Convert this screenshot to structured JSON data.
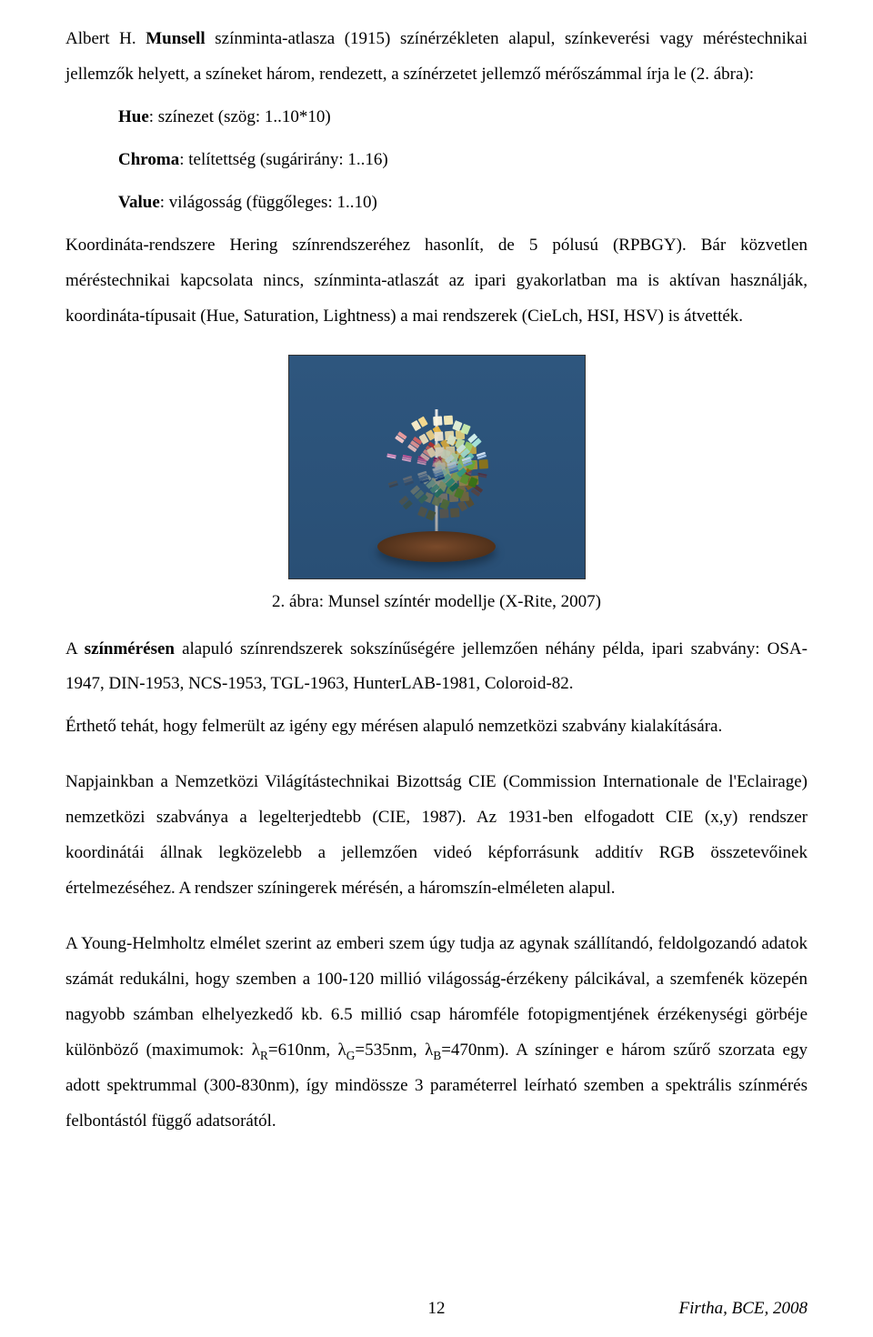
{
  "paragraphs": {
    "p1_a": "Albert H. ",
    "p1_b": "Munsell",
    "p1_c": " színminta-atlasza (1915) színérzékleten alapul, színkeverési vagy méréstechnikai jellemzők helyett, a színeket három, rendezett, a színérzetet jellemző mérőszámmal írja le (2. ábra):",
    "hue_a": "Hue",
    "hue_b": ": színezet (szög: 1..10*10)",
    "chroma_a": "Chroma",
    "chroma_b": ": telítettség (sugárirány: 1..16)",
    "value_a": "Value",
    "value_b": ": világosság (függőleges: 1..10)",
    "p2": "Koordináta-rendszere Hering színrendszeréhez hasonlít, de 5 pólusú (RPBGY). Bár közvetlen méréstechnikai kapcsolata nincs, színminta-atlaszát az ipari gyakorlatban ma is aktívan használják, koordináta-típusait (Hue, Saturation, Lightness) a mai rendszerek (CieLch, HSI, HSV) is átvették.",
    "caption": "2. ábra: Munsel színtér modellje (X-Rite, 2007)",
    "p3_a": "A ",
    "p3_b": "színmérésen",
    "p3_c": " alapuló színrendszerek sokszínűségére jellemzően néhány példa, ipari szabvány: OSA-1947, DIN-1953, NCS-1953, TGL-1963, HunterLAB-1981, Coloroid-82.",
    "p4": "Érthető tehát, hogy felmerült az igény egy mérésen alapuló nemzetközi szabvány kialakítására.",
    "p5": "Napjainkban a Nemzetközi Világítástechnikai Bizottság CIE (Commission Internationale de l'Eclairage) nemzetközi szabványa a legelterjedtebb (CIE, 1987). Az 1931-ben elfogadott CIE (x,y) rendszer koordinátái állnak legközelebb a jellemzően videó képforrásunk additív RGB összetevőinek értelmezéséhez. A rendszer színingerek mérésén, a háromszín-elméleten alapul.",
    "p6_a": "A Young-Helmholtz elmélet szerint az emberi szem úgy tudja az agynak szállítandó, feldolgozandó adatok számát redukálni, hogy szemben a 100-120 millió világosság-érzékeny pálcikával, a szemfenék közepén nagyobb számban elhelyezkedő kb. 6.5 millió csap háromféle fotopigmentjének érzékenységi görbéje különböző (maximumok: λ",
    "p6_R": "R",
    "p6_b": "=610nm, λ",
    "p6_G": "G",
    "p6_c": "=535nm, λ",
    "p6_B": "B",
    "p6_d": "=470nm). A színinger e három szűrő szorzata egy adott spektrummal (300-830nm), így mindössze 3 paraméterrel leírható szemben a spektrális színmérés felbontástól függő adatsorától."
  },
  "figure": {
    "name": "munsell-color-tree",
    "background_color": "#2e567e",
    "stand_color": "#5d3a20",
    "leaves": [
      {
        "angle": -78,
        "sx": 0.18,
        "hues": [
          "#efb3d9",
          "#e88fc3",
          "#df5ea7",
          "#c9328a",
          "#a91a6e"
        ]
      },
      {
        "angle": -55,
        "sx": 0.42,
        "hues": [
          "#f6c9c9",
          "#f19e9e",
          "#e76a6a",
          "#d63b3b",
          "#b41e1e"
        ]
      },
      {
        "angle": -30,
        "sx": 0.72,
        "hues": [
          "#fff2cc",
          "#ffe08f",
          "#ffc94a",
          "#f2ab1a",
          "#cc8400"
        ]
      },
      {
        "angle": -4,
        "sx": 0.98,
        "hues": [
          "#fdf7e2",
          "#f9edba",
          "#f2de85",
          "#e6c84e",
          "#c9a524"
        ]
      },
      {
        "angle": 22,
        "sx": 0.82,
        "hues": [
          "#e8f5d8",
          "#cdeeae",
          "#a7df77",
          "#7ccb42",
          "#4fa31f"
        ]
      },
      {
        "angle": 48,
        "sx": 0.55,
        "hues": [
          "#d8f5ef",
          "#a9e8dc",
          "#6fd4c1",
          "#3bb8a0",
          "#1a8e78"
        ]
      },
      {
        "angle": 72,
        "sx": 0.25,
        "hues": [
          "#d8e8f9",
          "#a9c9ee",
          "#6fa1dd",
          "#3b77c4",
          "#1a4e9a"
        ]
      }
    ]
  },
  "footer": {
    "page": "12",
    "credit": "Firtha, BCE, 2008"
  },
  "colors": {
    "text": "#000000",
    "background": "#ffffff"
  }
}
